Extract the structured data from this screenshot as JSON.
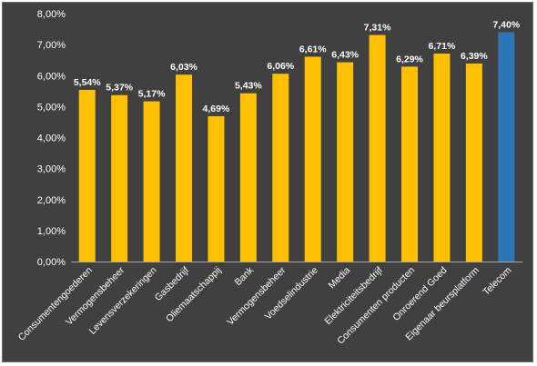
{
  "chart_data": {
    "type": "bar",
    "categories": [
      "Consumentengoederen",
      "Vermogensbeheer",
      "Levensverzekeringen",
      "Gasbedrijf",
      "Oliemaatschappij",
      "Bank",
      "Vermogensbeheer",
      "Voedselindustrie",
      "Media",
      "Elektriciteitsbedrijf",
      "Consumenten producten",
      "Onroerend Goed",
      "Eigenaar beursplatform",
      "Telecom"
    ],
    "values": [
      5.54,
      5.37,
      5.17,
      6.03,
      4.69,
      5.43,
      6.06,
      6.61,
      6.43,
      7.31,
      6.29,
      6.71,
      6.39,
      7.4
    ],
    "data_labels": [
      "5,54%",
      "5,37%",
      "5,17%",
      "6,03%",
      "4,69%",
      "5,43%",
      "6,06%",
      "6,61%",
      "6,43%",
      "7,31%",
      "6,29%",
      "6,71%",
      "6,39%",
      "7,40%"
    ],
    "yticks": [
      0,
      1,
      2,
      3,
      4,
      5,
      6,
      7,
      8
    ],
    "ytick_labels": [
      "0,00%",
      "1,00%",
      "2,00%",
      "3,00%",
      "4,00%",
      "5,00%",
      "6,00%",
      "7,00%",
      "8,00%"
    ],
    "ylim": [
      0,
      8
    ],
    "title": "",
    "xlabel": "",
    "ylabel": "",
    "grid": false,
    "legend": "none",
    "colors": {
      "background": "#404040",
      "default_bar": "#ffc000",
      "highlight_bar": "#2e75b6",
      "text": "#ffffff",
      "axis": "#a6a6a6"
    },
    "highlight_index": 13
  }
}
